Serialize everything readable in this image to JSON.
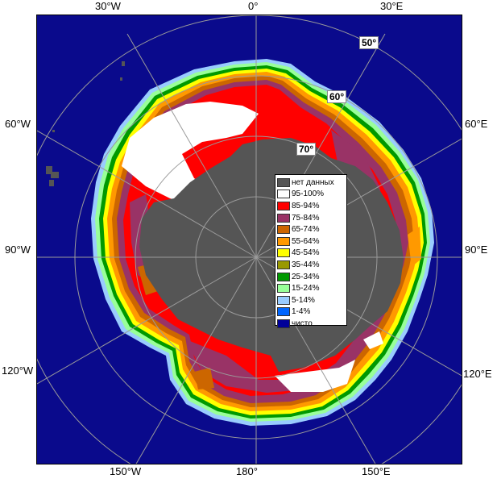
{
  "map": {
    "lon_labels": {
      "top_30w": "30°W",
      "top_0": "0°",
      "top_30e": "30°E",
      "left_60w": "60°W",
      "left_90w": "90°W",
      "left_120w": "120°W",
      "right_60e": "60°E",
      "right_90e": "90°E",
      "right_120e": "120°E",
      "bottom_150w": "150°W",
      "bottom_180": "180°",
      "bottom_150e": "150°E"
    },
    "lat_labels": {
      "lat50": "50°",
      "lat60": "60°",
      "lat70": "70°"
    },
    "colors": {
      "ocean": "#0a0a8c",
      "land": "#555555",
      "graticule": "#9a9a9a"
    }
  },
  "legend": {
    "items": [
      {
        "label": "нет данных",
        "color": "#555555"
      },
      {
        "label": "95-100%",
        "color": "#ffffff"
      },
      {
        "label": "85-94%",
        "color": "#ff0000"
      },
      {
        "label": "75-84%",
        "color": "#993366"
      },
      {
        "label": "65-74%",
        "color": "#cc6600"
      },
      {
        "label": "55-64%",
        "color": "#ff9900"
      },
      {
        "label": "45-54%",
        "color": "#ffff00"
      },
      {
        "label": "35-44%",
        "color": "#999900"
      },
      {
        "label": "25-34%",
        "color": "#009900"
      },
      {
        "label": "15-24%",
        "color": "#99ff99"
      },
      {
        "label": "5-14%",
        "color": "#99ccff"
      },
      {
        "label": "1-4%",
        "color": "#0066ff"
      },
      {
        "label": "чисто",
        "color": "#000099"
      }
    ]
  }
}
